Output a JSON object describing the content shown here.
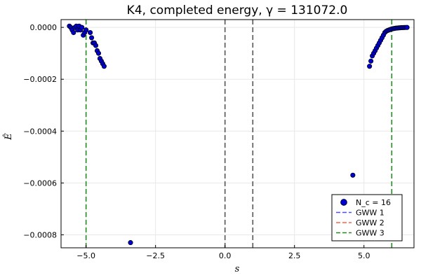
{
  "chart_data": {
    "type": "scatter",
    "title": "K4, completed energy, γ = 131072.0",
    "xlabel": "s",
    "ylabel": "Ê",
    "xlim": [
      -5.9,
      6.8
    ],
    "ylim": [
      -0.00085,
      3e-05
    ],
    "xticks": [
      -5.0,
      -2.5,
      0.0,
      2.5,
      5.0
    ],
    "xtick_labels": [
      "−5.0",
      "−2.5",
      "0.0",
      "2.5",
      "5.0"
    ],
    "yticks": [
      0.0,
      -0.0002,
      -0.0004,
      -0.0006,
      -0.0008
    ],
    "ytick_labels": [
      "0.0000",
      "−0.0002",
      "−0.0004",
      "−0.0006",
      "−0.0008"
    ],
    "grid": true,
    "legend_position": "bottom-right",
    "series": [
      {
        "name": "N_c = 16",
        "color": "#0000cc",
        "points": [
          [
            -5.6,
            5e-06
          ],
          [
            -5.55,
            0.0
          ],
          [
            -5.5,
            -1e-05
          ],
          [
            -5.45,
            -2e-05
          ],
          [
            -5.4,
            0.0
          ],
          [
            -5.35,
            5e-06
          ],
          [
            -5.3,
            -1e-05
          ],
          [
            -5.25,
            5e-06
          ],
          [
            -5.2,
            -1e-05
          ],
          [
            -5.15,
            0.0
          ],
          [
            -5.1,
            -3e-05
          ],
          [
            -5.05,
            -2e-05
          ],
          [
            -5.0,
            -1e-05
          ],
          [
            -4.85,
            -2e-05
          ],
          [
            -4.8,
            -4e-05
          ],
          [
            -4.75,
            -6e-05
          ],
          [
            -4.7,
            -6e-05
          ],
          [
            -4.65,
            -7e-05
          ],
          [
            -4.6,
            -9e-05
          ],
          [
            -4.55,
            -0.0001
          ],
          [
            -4.5,
            -0.00012
          ],
          [
            -4.45,
            -0.00013
          ],
          [
            -4.4,
            -0.00014
          ],
          [
            -4.35,
            -0.00015
          ],
          [
            -3.4,
            -0.00083
          ],
          [
            4.6,
            -0.00057
          ],
          [
            5.2,
            -0.00015
          ],
          [
            5.25,
            -0.00013
          ],
          [
            5.3,
            -0.00011
          ],
          [
            5.35,
            -0.0001
          ],
          [
            5.4,
            -9e-05
          ],
          [
            5.45,
            -8e-05
          ],
          [
            5.5,
            -7e-05
          ],
          [
            5.55,
            -6e-05
          ],
          [
            5.6,
            -5e-05
          ],
          [
            5.65,
            -4e-05
          ],
          [
            5.7,
            -3e-05
          ],
          [
            5.75,
            -2e-05
          ],
          [
            5.8,
            -1.5e-05
          ],
          [
            5.85,
            -1.2e-05
          ],
          [
            5.9,
            -1e-05
          ],
          [
            5.95,
            -8e-06
          ],
          [
            6.0,
            -6e-06
          ],
          [
            6.05,
            -5e-06
          ],
          [
            6.1,
            -4e-06
          ],
          [
            6.15,
            -3e-06
          ],
          [
            6.2,
            -2.5e-06
          ],
          [
            6.25,
            -2e-06
          ],
          [
            6.3,
            -1.5e-06
          ],
          [
            6.35,
            -1e-06
          ],
          [
            6.4,
            -8e-07
          ],
          [
            6.45,
            -6e-07
          ],
          [
            6.5,
            -4e-07
          ],
          [
            6.55,
            -2e-07
          ]
        ]
      }
    ],
    "vlines": [
      {
        "name": "GWW 1",
        "color": "#4d4dff",
        "x": [
          0.0,
          1.0
        ],
        "drawn_color": "#555555"
      },
      {
        "name": "GWW 2",
        "color": "#ff6347",
        "x": [],
        "drawn_color": "#ff6347"
      },
      {
        "name": "GWW 3",
        "color": "#228b22",
        "x": [
          -5.0,
          6.0
        ],
        "drawn_color": "#228b22"
      }
    ],
    "legend": [
      {
        "label": "N_c = 16",
        "kind": "marker",
        "color": "#0000cc"
      },
      {
        "label": "GWW 1",
        "kind": "line",
        "color": "#4d4dff"
      },
      {
        "label": "GWW 2",
        "kind": "line",
        "color": "#ff6347"
      },
      {
        "label": "GWW 3",
        "kind": "line",
        "color": "#228b22"
      }
    ]
  }
}
